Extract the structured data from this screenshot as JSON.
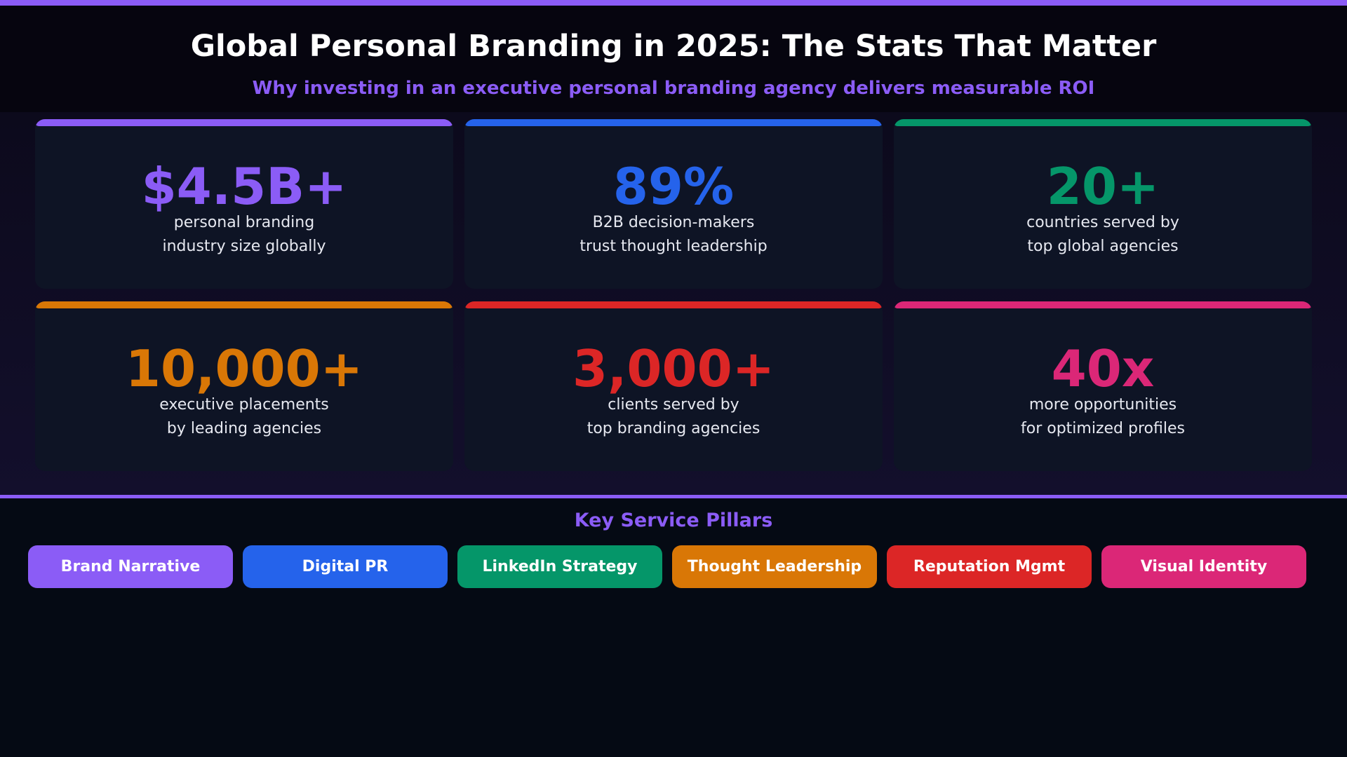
{
  "header": {
    "title": "Global Personal Branding in 2025: The Stats That Matter",
    "subtitle": "Why investing in an executive personal branding agency delivers measurable ROI"
  },
  "stats": [
    {
      "value": "$4.5B+",
      "line1": "personal branding",
      "line2": "industry size globally",
      "color": "#8b5cf6"
    },
    {
      "value": "89%",
      "line1": "B2B decision-makers",
      "line2": "trust thought leadership",
      "color": "#2563eb"
    },
    {
      "value": "20+",
      "line1": "countries served by",
      "line2": "top global agencies",
      "color": "#059669"
    },
    {
      "value": "10,000+",
      "line1": "executive placements",
      "line2": "by leading agencies",
      "color": "#d97706"
    },
    {
      "value": "3,000+",
      "line1": "clients served by",
      "line2": "top branding agencies",
      "color": "#dc2626"
    },
    {
      "value": "40x",
      "line1": "more opportunities",
      "line2": "for optimized profiles",
      "color": "#db2777"
    }
  ],
  "pillars": {
    "heading": "Key Service Pillars",
    "items": [
      {
        "label": "Brand Narrative",
        "color": "#8b5cf6"
      },
      {
        "label": "Digital PR",
        "color": "#2563eb"
      },
      {
        "label": "LinkedIn Strategy",
        "color": "#059669"
      },
      {
        "label": "Thought Leadership",
        "color": "#d97706"
      },
      {
        "label": "Reputation Mgmt",
        "color": "#dc2626"
      },
      {
        "label": "Visual Identity",
        "color": "#db2777"
      }
    ]
  },
  "colors": {
    "accent": "#8b5cf6",
    "card_background": "#0e1425",
    "text": "#ffffff"
  }
}
